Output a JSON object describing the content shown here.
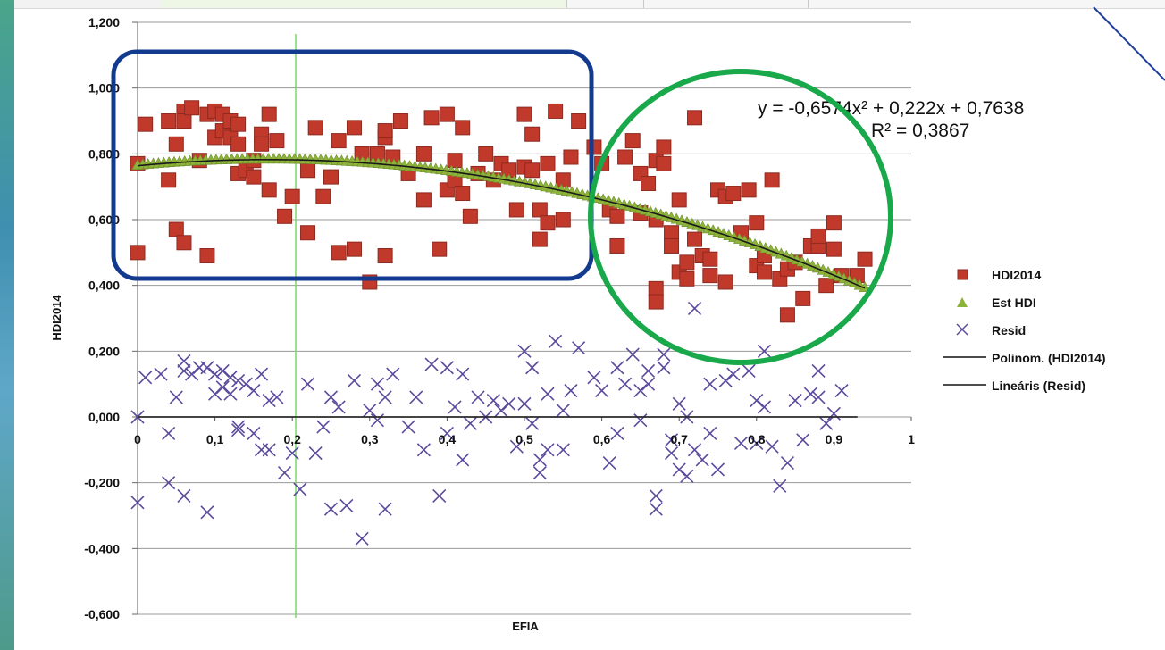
{
  "chart_data": {
    "type": "scatter",
    "xlabel": "EFIA",
    "ylabel": "HDI2014",
    "xlim": [
      0,
      1
    ],
    "ylim": [
      -0.6,
      1.2
    ],
    "x_ticks": [
      "0",
      "0,1",
      "0,2",
      "0,3",
      "0,4",
      "0,5",
      "0,6",
      "0,7",
      "0,8",
      "0,9",
      "1"
    ],
    "y_ticks": [
      "-0,600",
      "-0,400",
      "-0,200",
      "0,000",
      "0,200",
      "0,400",
      "0,600",
      "0,800",
      "1,000",
      "1,200"
    ],
    "grid": "horizontal",
    "legend_position": "right",
    "equation": "y = -0,6574x² + 0,222x + 0,7638",
    "r_squared": "R² = 0,3867",
    "legend": [
      "HDI2014",
      "Est HDI",
      "Resid",
      "Polinom. (HDI2014)",
      "Lineáris (Resid)"
    ],
    "trend_poly": {
      "a": -0.6574,
      "b": 0.222,
      "c": 0.7638,
      "x_range": [
        0,
        0.94
      ]
    },
    "trend_linear_resid": {
      "points": [
        [
          0,
          0.0
        ],
        [
          0.93,
          0.0
        ]
      ]
    },
    "series": [
      {
        "name": "HDI2014",
        "marker": "square",
        "color": "#c0392b",
        "points": [
          [
            0.0,
            0.77
          ],
          [
            0.0,
            0.5
          ],
          [
            0.01,
            0.89
          ],
          [
            0.04,
            0.9
          ],
          [
            0.04,
            0.72
          ],
          [
            0.05,
            0.83
          ],
          [
            0.05,
            0.57
          ],
          [
            0.06,
            0.93
          ],
          [
            0.06,
            0.9
          ],
          [
            0.06,
            0.53
          ],
          [
            0.07,
            0.94
          ],
          [
            0.08,
            0.78
          ],
          [
            0.09,
            0.92
          ],
          [
            0.09,
            0.49
          ],
          [
            0.1,
            0.93
          ],
          [
            0.1,
            0.85
          ],
          [
            0.11,
            0.92
          ],
          [
            0.11,
            0.87
          ],
          [
            0.12,
            0.9
          ],
          [
            0.12,
            0.85
          ],
          [
            0.13,
            0.89
          ],
          [
            0.13,
            0.83
          ],
          [
            0.13,
            0.74
          ],
          [
            0.14,
            0.75
          ],
          [
            0.15,
            0.78
          ],
          [
            0.15,
            0.73
          ],
          [
            0.16,
            0.86
          ],
          [
            0.16,
            0.83
          ],
          [
            0.17,
            0.92
          ],
          [
            0.17,
            0.69
          ],
          [
            0.18,
            0.84
          ],
          [
            0.19,
            0.61
          ],
          [
            0.2,
            0.67
          ],
          [
            0.22,
            0.56
          ],
          [
            0.22,
            0.75
          ],
          [
            0.23,
            0.88
          ],
          [
            0.24,
            0.67
          ],
          [
            0.25,
            0.73
          ],
          [
            0.26,
            0.84
          ],
          [
            0.26,
            0.5
          ],
          [
            0.28,
            0.51
          ],
          [
            0.28,
            0.88
          ],
          [
            0.29,
            0.8
          ],
          [
            0.3,
            0.41
          ],
          [
            0.31,
            0.8
          ],
          [
            0.32,
            0.85
          ],
          [
            0.32,
            0.87
          ],
          [
            0.33,
            0.79
          ],
          [
            0.32,
            0.49
          ],
          [
            0.34,
            0.9
          ],
          [
            0.35,
            0.74
          ],
          [
            0.37,
            0.8
          ],
          [
            0.37,
            0.66
          ],
          [
            0.38,
            0.91
          ],
          [
            0.39,
            0.51
          ],
          [
            0.4,
            0.92
          ],
          [
            0.4,
            0.69
          ],
          [
            0.41,
            0.78
          ],
          [
            0.41,
            0.72
          ],
          [
            0.42,
            0.88
          ],
          [
            0.42,
            0.68
          ],
          [
            0.43,
            0.61
          ],
          [
            0.44,
            0.74
          ],
          [
            0.45,
            0.8
          ],
          [
            0.46,
            0.72
          ],
          [
            0.47,
            0.77
          ],
          [
            0.48,
            0.75
          ],
          [
            0.49,
            0.63
          ],
          [
            0.5,
            0.92
          ],
          [
            0.5,
            0.76
          ],
          [
            0.51,
            0.86
          ],
          [
            0.51,
            0.75
          ],
          [
            0.52,
            0.54
          ],
          [
            0.52,
            0.63
          ],
          [
            0.53,
            0.59
          ],
          [
            0.53,
            0.77
          ],
          [
            0.54,
            0.93
          ],
          [
            0.55,
            0.72
          ],
          [
            0.55,
            0.6
          ],
          [
            0.56,
            0.79
          ],
          [
            0.57,
            0.9
          ],
          [
            0.59,
            0.82
          ],
          [
            0.6,
            0.77
          ],
          [
            0.61,
            0.63
          ],
          [
            0.62,
            0.61
          ],
          [
            0.62,
            0.52
          ],
          [
            0.63,
            0.79
          ],
          [
            0.64,
            0.84
          ],
          [
            0.65,
            0.74
          ],
          [
            0.65,
            0.62
          ],
          [
            0.66,
            0.71
          ],
          [
            0.67,
            0.78
          ],
          [
            0.67,
            0.6
          ],
          [
            0.67,
            0.39
          ],
          [
            0.67,
            0.35
          ],
          [
            0.68,
            0.82
          ],
          [
            0.68,
            0.77
          ],
          [
            0.69,
            0.56
          ],
          [
            0.69,
            0.52
          ],
          [
            0.7,
            0.66
          ],
          [
            0.7,
            0.44
          ],
          [
            0.71,
            0.47
          ],
          [
            0.71,
            0.42
          ],
          [
            0.72,
            0.91
          ],
          [
            0.72,
            0.54
          ],
          [
            0.73,
            0.49
          ],
          [
            0.74,
            0.48
          ],
          [
            0.74,
            0.43
          ],
          [
            0.75,
            0.69
          ],
          [
            0.76,
            0.67
          ],
          [
            0.76,
            0.41
          ],
          [
            0.77,
            0.68
          ],
          [
            0.78,
            0.56
          ],
          [
            0.79,
            0.69
          ],
          [
            0.8,
            0.46
          ],
          [
            0.8,
            0.59
          ],
          [
            0.81,
            0.49
          ],
          [
            0.81,
            0.44
          ],
          [
            0.82,
            0.72
          ],
          [
            0.83,
            0.42
          ],
          [
            0.84,
            0.45
          ],
          [
            0.84,
            0.31
          ],
          [
            0.85,
            0.47
          ],
          [
            0.86,
            0.36
          ],
          [
            0.87,
            0.52
          ],
          [
            0.88,
            0.52
          ],
          [
            0.88,
            0.55
          ],
          [
            0.89,
            0.4
          ],
          [
            0.9,
            0.59
          ],
          [
            0.9,
            0.51
          ],
          [
            0.91,
            0.43
          ],
          [
            0.93,
            0.43
          ],
          [
            0.94,
            0.48
          ]
        ]
      },
      {
        "name": "Est HDI",
        "marker": "triangle",
        "color": "#8db33a",
        "from_trend": true,
        "x_start": 0.0,
        "x_end": 0.94,
        "count": 140
      },
      {
        "name": "Resid",
        "marker": "x",
        "color": "#5c4a9c",
        "points": [
          [
            0.0,
            0.0
          ],
          [
            0.0,
            -0.26
          ],
          [
            0.01,
            0.12
          ],
          [
            0.03,
            0.13
          ],
          [
            0.04,
            -0.05
          ],
          [
            0.04,
            -0.2
          ],
          [
            0.05,
            0.06
          ],
          [
            0.06,
            0.14
          ],
          [
            0.06,
            0.17
          ],
          [
            0.06,
            -0.24
          ],
          [
            0.07,
            0.13
          ],
          [
            0.08,
            0.15
          ],
          [
            0.09,
            0.15
          ],
          [
            0.09,
            -0.29
          ],
          [
            0.1,
            0.13
          ],
          [
            0.1,
            0.07
          ],
          [
            0.11,
            0.14
          ],
          [
            0.11,
            0.09
          ],
          [
            0.12,
            0.12
          ],
          [
            0.12,
            0.07
          ],
          [
            0.13,
            0.11
          ],
          [
            0.13,
            -0.04
          ],
          [
            0.13,
            -0.03
          ],
          [
            0.14,
            0.1
          ],
          [
            0.15,
            0.08
          ],
          [
            0.15,
            -0.05
          ],
          [
            0.16,
            0.13
          ],
          [
            0.16,
            -0.1
          ],
          [
            0.17,
            0.05
          ],
          [
            0.17,
            -0.1
          ],
          [
            0.18,
            0.06
          ],
          [
            0.19,
            -0.17
          ],
          [
            0.2,
            -0.11
          ],
          [
            0.21,
            -0.22
          ],
          [
            0.22,
            0.1
          ],
          [
            0.23,
            -0.11
          ],
          [
            0.24,
            -0.03
          ],
          [
            0.25,
            0.06
          ],
          [
            0.25,
            -0.28
          ],
          [
            0.26,
            0.03
          ],
          [
            0.27,
            -0.27
          ],
          [
            0.28,
            0.11
          ],
          [
            0.29,
            -0.37
          ],
          [
            0.3,
            0.02
          ],
          [
            0.31,
            0.1
          ],
          [
            0.31,
            -0.01
          ],
          [
            0.32,
            0.06
          ],
          [
            0.32,
            -0.28
          ],
          [
            0.33,
            0.13
          ],
          [
            0.35,
            -0.03
          ],
          [
            0.36,
            0.06
          ],
          [
            0.37,
            -0.1
          ],
          [
            0.38,
            0.16
          ],
          [
            0.39,
            -0.24
          ],
          [
            0.4,
            0.15
          ],
          [
            0.4,
            -0.05
          ],
          [
            0.41,
            0.03
          ],
          [
            0.42,
            0.13
          ],
          [
            0.42,
            -0.13
          ],
          [
            0.43,
            -0.02
          ],
          [
            0.44,
            0.06
          ],
          [
            0.45,
            0.0
          ],
          [
            0.46,
            0.05
          ],
          [
            0.47,
            0.02
          ],
          [
            0.48,
            0.04
          ],
          [
            0.49,
            -0.09
          ],
          [
            0.5,
            0.2
          ],
          [
            0.5,
            0.04
          ],
          [
            0.51,
            0.15
          ],
          [
            0.51,
            -0.02
          ],
          [
            0.52,
            -0.17
          ],
          [
            0.52,
            -0.13
          ],
          [
            0.53,
            -0.1
          ],
          [
            0.53,
            0.07
          ],
          [
            0.54,
            0.23
          ],
          [
            0.55,
            0.02
          ],
          [
            0.55,
            -0.1
          ],
          [
            0.56,
            0.08
          ],
          [
            0.57,
            0.21
          ],
          [
            0.59,
            0.12
          ],
          [
            0.6,
            0.08
          ],
          [
            0.61,
            -0.14
          ],
          [
            0.62,
            0.15
          ],
          [
            0.62,
            -0.05
          ],
          [
            0.63,
            0.1
          ],
          [
            0.64,
            0.19
          ],
          [
            0.65,
            0.08
          ],
          [
            0.65,
            -0.01
          ],
          [
            0.66,
            0.1
          ],
          [
            0.66,
            0.14
          ],
          [
            0.67,
            -0.24
          ],
          [
            0.67,
            -0.28
          ],
          [
            0.68,
            0.19
          ],
          [
            0.68,
            0.15
          ],
          [
            0.69,
            -0.07
          ],
          [
            0.69,
            -0.11
          ],
          [
            0.7,
            0.04
          ],
          [
            0.7,
            -0.16
          ],
          [
            0.71,
            0.0
          ],
          [
            0.71,
            -0.18
          ],
          [
            0.72,
            0.33
          ],
          [
            0.72,
            -0.1
          ],
          [
            0.73,
            -0.13
          ],
          [
            0.74,
            -0.05
          ],
          [
            0.74,
            0.1
          ],
          [
            0.75,
            -0.16
          ],
          [
            0.76,
            0.11
          ],
          [
            0.77,
            0.13
          ],
          [
            0.78,
            -0.08
          ],
          [
            0.79,
            0.14
          ],
          [
            0.8,
            -0.08
          ],
          [
            0.8,
            0.05
          ],
          [
            0.81,
            0.2
          ],
          [
            0.81,
            0.03
          ],
          [
            0.82,
            -0.09
          ],
          [
            0.83,
            -0.21
          ],
          [
            0.84,
            -0.14
          ],
          [
            0.85,
            0.05
          ],
          [
            0.86,
            -0.07
          ],
          [
            0.87,
            0.07
          ],
          [
            0.88,
            0.06
          ],
          [
            0.88,
            0.14
          ],
          [
            0.89,
            -0.02
          ],
          [
            0.9,
            0.01
          ],
          [
            0.91,
            0.08
          ]
        ]
      }
    ]
  }
}
